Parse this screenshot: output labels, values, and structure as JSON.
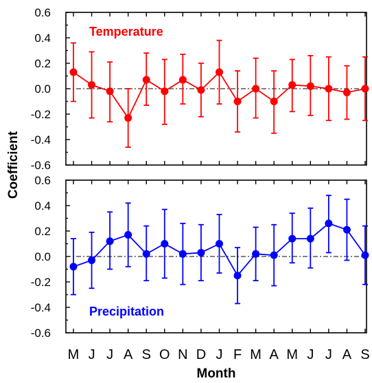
{
  "chart_data": [
    {
      "type": "line",
      "title": "Temperature",
      "color": "#ff0000",
      "ylim": [
        -0.6,
        0.6
      ],
      "yticks": [
        "0.6",
        "0.4",
        "0.2",
        "0.0",
        "-0.2",
        "-0.4",
        "-0.6"
      ],
      "values": [
        0.13,
        0.03,
        -0.02,
        -0.23,
        0.07,
        -0.02,
        0.07,
        -0.01,
        0.13,
        -0.1,
        0.0,
        -0.1,
        0.03,
        0.02,
        0.0,
        -0.03,
        0.0
      ],
      "err_low": [
        -0.1,
        -0.23,
        -0.26,
        -0.46,
        -0.13,
        -0.28,
        -0.12,
        -0.22,
        -0.12,
        -0.34,
        -0.23,
        -0.35,
        -0.18,
        -0.21,
        -0.25,
        -0.24,
        -0.25
      ],
      "err_high": [
        0.36,
        0.29,
        0.21,
        0.0,
        0.28,
        0.23,
        0.27,
        0.2,
        0.38,
        0.14,
        0.24,
        0.14,
        0.23,
        0.26,
        0.25,
        0.18,
        0.25
      ]
    },
    {
      "type": "line",
      "title": "Precipitation",
      "color": "#0000ff",
      "ylim": [
        -0.6,
        0.6
      ],
      "yticks": [
        "0.6",
        "0.4",
        "0.2",
        "0.0",
        "-0.2",
        "-0.4",
        "-0.6"
      ],
      "values": [
        -0.08,
        -0.03,
        0.12,
        0.17,
        0.02,
        0.1,
        0.02,
        0.03,
        0.1,
        -0.15,
        0.02,
        0.01,
        0.14,
        0.14,
        0.26,
        0.21,
        0.01
      ],
      "err_low": [
        -0.3,
        -0.25,
        -0.1,
        -0.08,
        -0.19,
        -0.17,
        -0.22,
        -0.19,
        -0.13,
        -0.37,
        -0.19,
        -0.23,
        -0.05,
        -0.09,
        0.03,
        -0.03,
        -0.22
      ],
      "err_high": [
        0.14,
        0.19,
        0.35,
        0.42,
        0.24,
        0.37,
        0.26,
        0.25,
        0.33,
        0.07,
        0.23,
        0.25,
        0.34,
        0.38,
        0.48,
        0.45,
        0.24
      ]
    }
  ],
  "axes": {
    "categories": [
      "M",
      "J",
      "J",
      "A",
      "S",
      "O",
      "N",
      "D",
      "J",
      "F",
      "M",
      "A",
      "M",
      "J",
      "J",
      "A",
      "S"
    ],
    "xlabel": "Month",
    "ylabel": "Coefficient"
  }
}
